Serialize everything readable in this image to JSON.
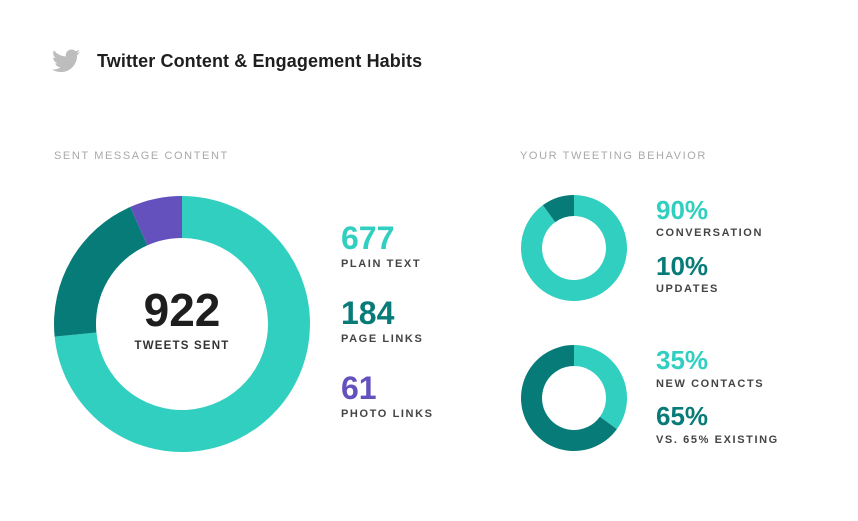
{
  "header": {
    "title": "Twitter Content & Engagement Habits",
    "icon": "twitter-bird-icon"
  },
  "colors": {
    "teal": "#30cfc0",
    "dark_teal": "#077b78",
    "purple": "#6551be",
    "icon_gray": "#bdbdbd"
  },
  "chart_data": [
    {
      "type": "pie",
      "title": "SENT MESSAGE CONTENT",
      "center_value": "922",
      "center_label": "TWEETS SENT",
      "slices": [
        {
          "label": "PLAIN TEXT",
          "value": 677,
          "display": "677",
          "color": "#30cfc0"
        },
        {
          "label": "PAGE LINKS",
          "value": 184,
          "display": "184",
          "color": "#077b78"
        },
        {
          "label": "PHOTO LINKS",
          "value": 61,
          "display": "61",
          "color": "#6551be"
        }
      ]
    },
    {
      "type": "pie",
      "title": "YOUR TWEETING BEHAVIOR",
      "slices": [
        {
          "label": "CONVERSATION",
          "value": 90,
          "display": "90%",
          "color": "#30cfc0"
        },
        {
          "label": "UPDATES",
          "value": 10,
          "display": "10%",
          "color": "#077b78"
        }
      ]
    },
    {
      "type": "pie",
      "slices": [
        {
          "label": "NEW CONTACTS",
          "value": 35,
          "display": "35%",
          "color": "#30cfc0"
        },
        {
          "label": "VS. 65% EXISTING",
          "value": 65,
          "display": "65%",
          "color": "#077b78"
        }
      ]
    }
  ]
}
